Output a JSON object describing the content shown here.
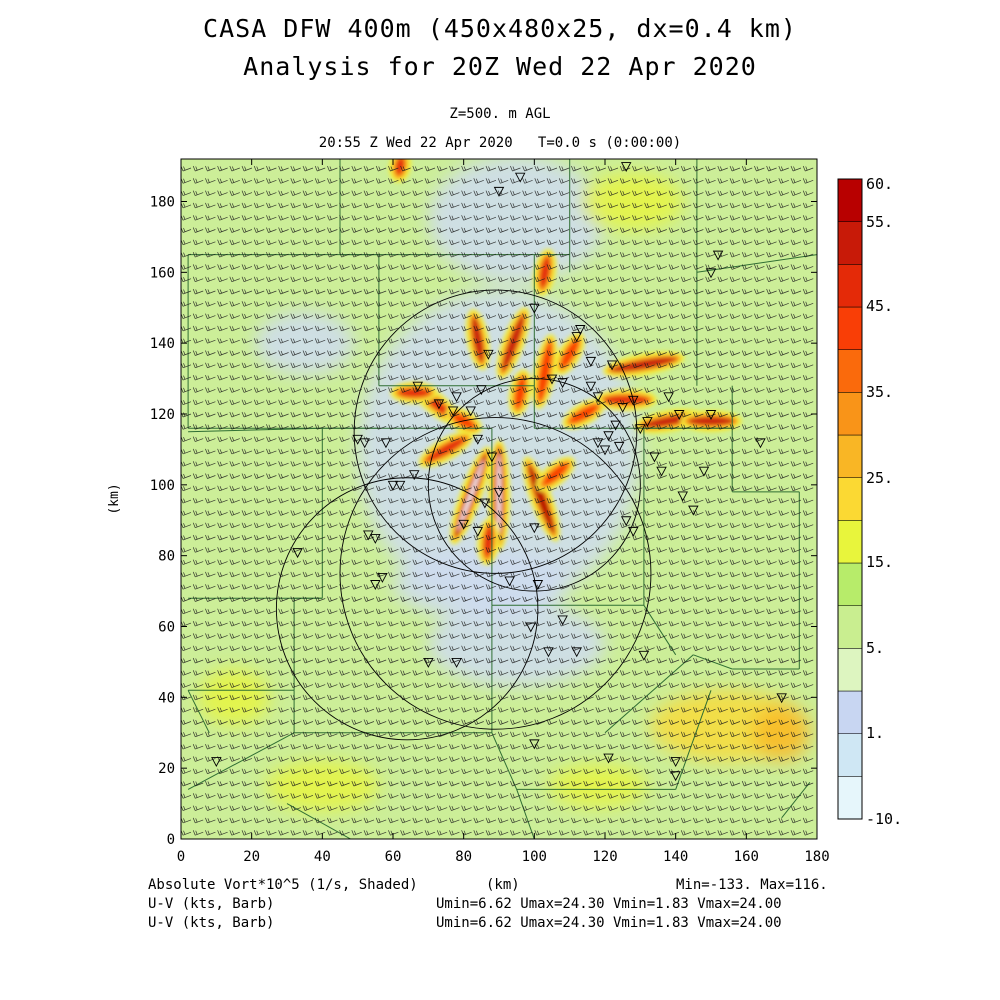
{
  "header": {
    "title": "CASA DFW 400m (450x480x25, dx=0.4 km)",
    "subtitle": "Analysis for 20Z Wed 22 Apr 2020",
    "level": "Z=500. m AGL",
    "valid_time": "20:55 Z Wed 22 Apr 2020   T=0.0 s (0:00:00)"
  },
  "footer": {
    "field1": "Absolute Vort*10^5 (1/s, Shaded)",
    "xunit": "(km)",
    "field1_range": "Min=-133. Max=116.",
    "field2": "U-V (kts, Barb)",
    "field2_range": "Umin=6.62 Umax=24.30 Vmin=1.83 Vmax=24.00",
    "field3": "U-V (kts, Barb)",
    "field3_range": "Umin=6.62 Umax=24.30 Vmin=1.83 Vmax=24.00"
  },
  "chart_data": {
    "type": "heatmap",
    "xlabel": "(km)",
    "ylabel": "(km)",
    "xlim": [
      0,
      180
    ],
    "ylim": [
      0,
      192
    ],
    "xticks": [
      "0",
      "20",
      "40",
      "60",
      "80",
      "100",
      "120",
      "140",
      "160",
      "180"
    ],
    "yticks": [
      "0",
      "20",
      "40",
      "60",
      "80",
      "100",
      "120",
      "140",
      "160",
      "180"
    ],
    "colorbar": {
      "labels": [
        "-10.",
        "1.",
        "5.",
        "15.",
        "25.",
        "35.",
        "45.",
        "55.",
        "60."
      ],
      "colors": [
        "#e6f6fb",
        "#cfe7f4",
        "#c8d6f2",
        "#ddf5c0",
        "#c9ee90",
        "#b7ec6a",
        "#e8f53c",
        "#fbd933",
        "#f9b625",
        "#f99418",
        "#fa6a0c",
        "#f93e06",
        "#e42a08",
        "#c81a08",
        "#b80000"
      ]
    },
    "radar_rings": [
      {
        "cx": 89,
        "cy": 115,
        "r": 40
      },
      {
        "cx": 64,
        "cy": 65,
        "r": 37
      },
      {
        "cx": 89,
        "cy": 75,
        "r": 44
      },
      {
        "cx": 100,
        "cy": 100,
        "r": 30
      }
    ],
    "vorticity_bands": [
      {
        "x": 90,
        "y": 97,
        "angle": 90,
        "len": 28,
        "v": 60
      },
      {
        "x": 82,
        "y": 97,
        "angle": 70,
        "len": 26,
        "v": 58
      },
      {
        "x": 102,
        "y": 96,
        "angle": 110,
        "len": 22,
        "v": 55
      },
      {
        "x": 87,
        "y": 84,
        "angle": 85,
        "len": 10,
        "v": 45
      },
      {
        "x": 75,
        "y": 110,
        "angle": 30,
        "len": 14,
        "v": 45
      },
      {
        "x": 72,
        "y": 123,
        "angle": 140,
        "len": 14,
        "v": 45
      },
      {
        "x": 66,
        "y": 126,
        "angle": 0,
        "len": 10,
        "v": 45
      },
      {
        "x": 84,
        "y": 141,
        "angle": 100,
        "len": 14,
        "v": 50
      },
      {
        "x": 94,
        "y": 140,
        "angle": 70,
        "len": 18,
        "v": 50
      },
      {
        "x": 103,
        "y": 132,
        "angle": 80,
        "len": 18,
        "v": 40
      },
      {
        "x": 110,
        "y": 137,
        "angle": 60,
        "len": 10,
        "v": 40
      },
      {
        "x": 103,
        "y": 160,
        "angle": 80,
        "len": 10,
        "v": 45
      },
      {
        "x": 131,
        "y": 134,
        "angle": 10,
        "len": 20,
        "v": 50
      },
      {
        "x": 126,
        "y": 124,
        "angle": 0,
        "len": 14,
        "v": 45
      },
      {
        "x": 138,
        "y": 118,
        "angle": 10,
        "len": 16,
        "v": 50
      },
      {
        "x": 150,
        "y": 118,
        "angle": 0,
        "len": 14,
        "v": 50
      },
      {
        "x": 114,
        "y": 120,
        "angle": 30,
        "len": 10,
        "v": 40
      },
      {
        "x": 80,
        "y": 118,
        "angle": 150,
        "len": 8,
        "v": 40
      },
      {
        "x": 62,
        "y": 190,
        "angle": 80,
        "len": 6,
        "v": 45
      },
      {
        "x": 106,
        "y": 103,
        "angle": 40,
        "len": 10,
        "v": 40
      },
      {
        "x": 96,
        "y": 126,
        "angle": 80,
        "len": 10,
        "v": 40
      }
    ],
    "low_vort_areas": [
      {
        "x": 90,
        "y": 110,
        "rx": 40,
        "ry": 45
      },
      {
        "x": 95,
        "y": 175,
        "rx": 25,
        "ry": 18
      },
      {
        "x": 35,
        "y": 140,
        "rx": 14,
        "ry": 9
      },
      {
        "x": 95,
        "y": 55,
        "rx": 25,
        "ry": 12
      },
      {
        "x": 85,
        "y": 72,
        "rx": 25,
        "ry": 10
      }
    ],
    "high_vort_areas": [
      {
        "x": 155,
        "y": 32,
        "rx": 22,
        "ry": 10,
        "v": 22
      },
      {
        "x": 118,
        "y": 15,
        "rx": 14,
        "ry": 6,
        "v": 18
      },
      {
        "x": 40,
        "y": 15,
        "rx": 16,
        "ry": 7,
        "v": 17
      },
      {
        "x": 170,
        "y": 30,
        "rx": 8,
        "ry": 8,
        "v": 28
      },
      {
        "x": 128,
        "y": 180,
        "rx": 14,
        "ry": 8,
        "v": 16
      },
      {
        "x": 15,
        "y": 40,
        "rx": 10,
        "ry": 8,
        "v": 17
      }
    ],
    "radar_sites": [
      [
        10,
        22
      ],
      [
        33,
        81
      ],
      [
        50,
        113
      ],
      [
        53,
        86
      ],
      [
        55,
        72
      ],
      [
        57,
        74
      ],
      [
        55,
        85
      ],
      [
        62,
        100
      ],
      [
        67,
        128
      ],
      [
        73,
        123
      ],
      [
        78,
        125
      ],
      [
        77,
        121
      ],
      [
        82,
        121
      ],
      [
        85,
        127
      ],
      [
        87,
        137
      ],
      [
        84,
        113
      ],
      [
        80,
        89
      ],
      [
        84,
        87
      ],
      [
        86,
        95
      ],
      [
        88,
        108
      ],
      [
        90,
        98
      ],
      [
        93,
        73
      ],
      [
        100,
        88
      ],
      [
        101,
        72
      ],
      [
        90,
        183
      ],
      [
        96,
        187
      ],
      [
        100,
        150
      ],
      [
        108,
        129
      ],
      [
        113,
        144
      ],
      [
        116,
        135
      ],
      [
        118,
        125
      ],
      [
        118,
        112
      ],
      [
        120,
        110
      ],
      [
        121,
        114
      ],
      [
        123,
        117
      ],
      [
        124,
        111
      ],
      [
        125,
        122
      ],
      [
        128,
        124
      ],
      [
        126,
        90
      ],
      [
        128,
        87
      ],
      [
        130,
        116
      ],
      [
        132,
        118
      ],
      [
        134,
        108
      ],
      [
        136,
        104
      ],
      [
        138,
        125
      ],
      [
        141,
        120
      ],
      [
        142,
        97
      ],
      [
        145,
        93
      ],
      [
        148,
        104
      ],
      [
        150,
        120
      ],
      [
        150,
        160
      ],
      [
        152,
        165
      ],
      [
        126,
        190
      ],
      [
        70,
        50
      ],
      [
        78,
        50
      ],
      [
        104,
        53
      ],
      [
        112,
        53
      ],
      [
        100,
        27
      ],
      [
        121,
        23
      ],
      [
        131,
        52
      ],
      [
        140,
        18
      ],
      [
        140,
        22
      ],
      [
        164,
        112
      ],
      [
        170,
        40
      ],
      [
        112,
        142
      ],
      [
        116,
        128
      ],
      [
        122,
        134
      ],
      [
        99,
        60
      ],
      [
        108,
        62
      ],
      [
        52,
        112
      ],
      [
        58,
        112
      ],
      [
        60,
        100
      ],
      [
        66,
        103
      ],
      [
        105,
        130
      ]
    ],
    "county_lines": [
      [
        [
          2,
          165
        ],
        [
          2,
          116
        ]
      ],
      [
        [
          2,
          165
        ],
        [
          56,
          165
        ]
      ],
      [
        [
          2,
          116
        ],
        [
          56,
          116
        ]
      ],
      [
        [
          45,
          192
        ],
        [
          45,
          165
        ]
      ],
      [
        [
          45,
          165
        ],
        [
          110,
          165
        ]
      ],
      [
        [
          110,
          192
        ],
        [
          110,
          160
        ]
      ],
      [
        [
          56,
          165
        ],
        [
          56,
          128
        ]
      ],
      [
        [
          56,
          128
        ],
        [
          100,
          128
        ]
      ],
      [
        [
          100,
          165
        ],
        [
          100,
          116
        ]
      ],
      [
        [
          100,
          116
        ],
        [
          156,
          116
        ]
      ],
      [
        [
          146,
          192
        ],
        [
          146,
          128
        ]
      ],
      [
        [
          146,
          160
        ],
        [
          180,
          165
        ]
      ],
      [
        [
          156,
          128
        ],
        [
          156,
          116
        ]
      ],
      [
        [
          156,
          116
        ],
        [
          156,
          98
        ]
      ],
      [
        [
          156,
          98
        ],
        [
          175,
          98
        ]
      ],
      [
        [
          175,
          98
        ],
        [
          175,
          48
        ]
      ],
      [
        [
          156,
          48
        ],
        [
          175,
          48
        ]
      ],
      [
        [
          156,
          48
        ],
        [
          145,
          52
        ]
      ],
      [
        [
          2,
          115
        ],
        [
          40,
          116
        ]
      ],
      [
        [
          40,
          116
        ],
        [
          40,
          68
        ]
      ],
      [
        [
          40,
          68
        ],
        [
          2,
          68
        ]
      ],
      [
        [
          40,
          116
        ],
        [
          88,
          116
        ]
      ],
      [
        [
          88,
          116
        ],
        [
          88,
          66
        ]
      ],
      [
        [
          88,
          66
        ],
        [
          131,
          66
        ]
      ],
      [
        [
          131,
          66
        ],
        [
          131,
          116
        ]
      ],
      [
        [
          131,
          116
        ],
        [
          156,
          116
        ]
      ],
      [
        [
          131,
          66
        ],
        [
          140,
          52
        ]
      ],
      [
        [
          40,
          68
        ],
        [
          32,
          68
        ]
      ],
      [
        [
          32,
          68
        ],
        [
          32,
          42
        ]
      ],
      [
        [
          32,
          42
        ],
        [
          2,
          42
        ]
      ],
      [
        [
          32,
          42
        ],
        [
          32,
          30
        ]
      ],
      [
        [
          32,
          30
        ],
        [
          2,
          14
        ]
      ],
      [
        [
          32,
          30
        ],
        [
          88,
          30
        ]
      ],
      [
        [
          88,
          30
        ],
        [
          88,
          66
        ]
      ],
      [
        [
          88,
          30
        ],
        [
          95,
          14
        ]
      ],
      [
        [
          95,
          14
        ],
        [
          140,
          14
        ]
      ],
      [
        [
          140,
          14
        ],
        [
          150,
          42
        ]
      ],
      [
        [
          120,
          30
        ],
        [
          145,
          52
        ]
      ],
      [
        [
          2,
          42
        ],
        [
          8,
          30
        ]
      ],
      [
        [
          95,
          14
        ],
        [
          100,
          0
        ]
      ],
      [
        [
          30,
          10
        ],
        [
          48,
          0
        ]
      ],
      [
        [
          170,
          6
        ],
        [
          178,
          16
        ]
      ]
    ]
  }
}
